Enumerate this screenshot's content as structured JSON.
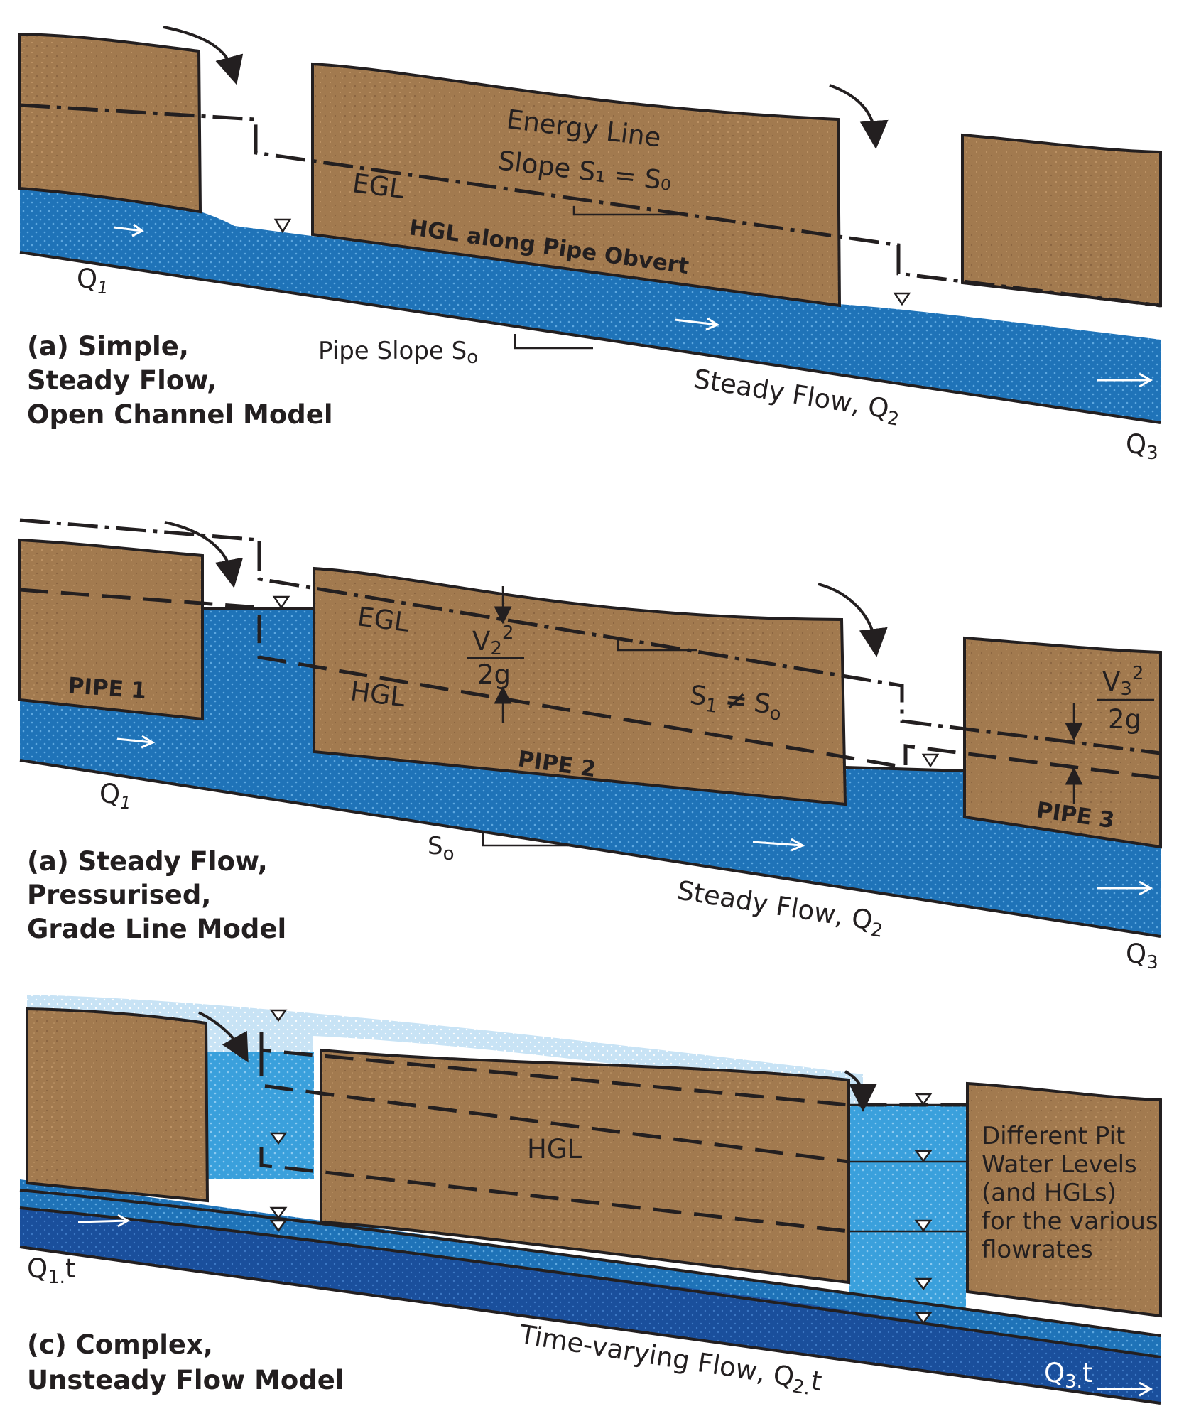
{
  "panel_a": {
    "egl_label": "EGL",
    "energy_line_label": "Energy Line",
    "slope_label": "Slope S₁ = S₀",
    "hgl_label": "HGL along Pipe Obvert",
    "q1": "Q",
    "q1_sub": "1",
    "pipe_slope": "Pipe Slope S",
    "pipe_slope_sub": "o",
    "steady_flow": "Steady Flow, Q",
    "steady_flow_sub": "2",
    "q3": "Q",
    "q3_sub": "3",
    "caption_line1": "(a) Simple,",
    "caption_line2": "Steady Flow,",
    "caption_line3": "Open Channel Model"
  },
  "panel_b": {
    "egl_label": "EGL",
    "hgl_label": "HGL",
    "pipe1": "PIPE 1",
    "pipe2": "PIPE 2",
    "pipe3": "PIPE 3",
    "v2_num": "V",
    "v2_sub": "2",
    "v2_sup": "2",
    "v2_den": "2g",
    "v3_num": "V",
    "v3_sub": "3",
    "v3_sup": "2",
    "v3_den": "2g",
    "slope_ineq_s1": "S",
    "slope_ineq_s1_sub": "1",
    "slope_ineq_ne": "≠",
    "slope_ineq_so": "S",
    "slope_ineq_so_sub": "o",
    "so": "S",
    "so_sub": "o",
    "q1": "Q",
    "q1_sub": "1",
    "steady_flow": "Steady Flow, Q",
    "steady_flow_sub": "2",
    "q3": "Q",
    "q3_sub": "3",
    "caption_line1": "(a) Steady Flow,",
    "caption_line2": "Pressurised,",
    "caption_line3": "Grade Line Model"
  },
  "panel_c": {
    "hgl_label": "HGL",
    "pit_note": [
      "Different Pit",
      "Water Levels",
      "(and HGLs)",
      "for the various",
      "flowrates"
    ],
    "q1": "Q",
    "q1_sub": "1.",
    "q1_t": "t",
    "time_flow": "Time-varying Flow, Q",
    "time_flow_sub": "2.",
    "time_flow_t": "t",
    "q3": "Q",
    "q3_sub": "3.",
    "q3_t": "t",
    "caption_line1": "(c) Complex,",
    "caption_line2": "Unsteady Flow Model"
  },
  "colors": {
    "soil": "#a27a4f",
    "water": "#1f73b8",
    "water_light": "#3aa0dc",
    "water_pale": "#c8e3f5",
    "water_dark": "#1a4f9c"
  }
}
